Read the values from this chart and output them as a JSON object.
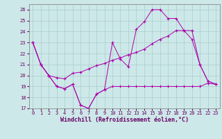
{
  "title": "",
  "xlabel": "Windchill (Refroidissement éolien,°C)",
  "ylabel": "",
  "background_color": "#cde8e8",
  "grid_color": "#aacccc",
  "line_color": "#aa00aa",
  "xlim": [
    -0.5,
    23.5
  ],
  "ylim": [
    17,
    26.5
  ],
  "yticks": [
    17,
    18,
    19,
    20,
    21,
    22,
    23,
    24,
    25,
    26
  ],
  "xticks": [
    0,
    1,
    2,
    3,
    4,
    5,
    6,
    7,
    8,
    9,
    10,
    11,
    12,
    13,
    14,
    15,
    16,
    17,
    18,
    19,
    20,
    21,
    22,
    23
  ],
  "series1_x": [
    0,
    1,
    2,
    3,
    4,
    5,
    6,
    7,
    8,
    9,
    10,
    11,
    12,
    13,
    14,
    15,
    16,
    17,
    18,
    19,
    20,
    21,
    22,
    23
  ],
  "series1_y": [
    23,
    21,
    20,
    19,
    18.8,
    19.2,
    17.3,
    17.0,
    18.3,
    18.7,
    19.0,
    19.0,
    19.0,
    19.0,
    19.0,
    19.0,
    19.0,
    19.0,
    19.0,
    19.0,
    19.0,
    19.0,
    19.3,
    19.2
  ],
  "series2_x": [
    0,
    1,
    2,
    3,
    4,
    5,
    6,
    7,
    8,
    9,
    10,
    11,
    12,
    13,
    14,
    15,
    16,
    17,
    18,
    19,
    20,
    21,
    22,
    23
  ],
  "series2_y": [
    23,
    21,
    20,
    19,
    18.8,
    19.2,
    17.3,
    17.0,
    18.3,
    18.7,
    23.0,
    21.5,
    20.8,
    24.2,
    24.9,
    26.0,
    26.0,
    25.2,
    25.2,
    24.1,
    23.3,
    21.0,
    19.5,
    19.2
  ],
  "series3_x": [
    0,
    1,
    2,
    3,
    4,
    5,
    6,
    7,
    8,
    9,
    10,
    11,
    12,
    13,
    14,
    15,
    16,
    17,
    18,
    19,
    20,
    21,
    22,
    23
  ],
  "series3_y": [
    23,
    21,
    20,
    19.8,
    19.7,
    20.2,
    20.3,
    20.6,
    20.9,
    21.1,
    21.4,
    21.6,
    21.9,
    22.1,
    22.4,
    22.9,
    23.3,
    23.6,
    24.1,
    24.1,
    24.1,
    21.0,
    19.5,
    19.2
  ],
  "tick_fontsize": 5,
  "xlabel_fontsize": 6,
  "tick_color": "#660066",
  "spine_color": "#888888"
}
